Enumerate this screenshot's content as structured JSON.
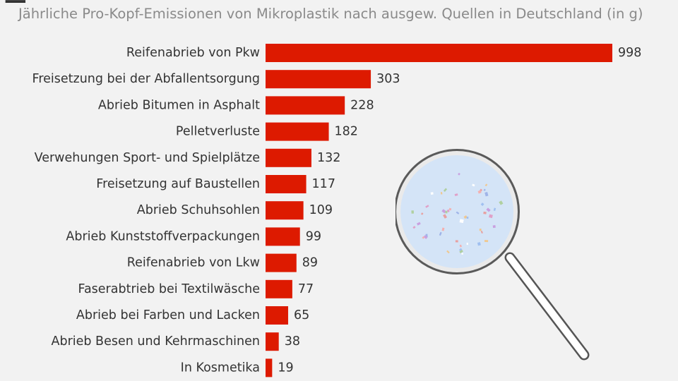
{
  "subtitle": "Jährliche Pro-Kopf-Emissionen von Mikroplastik nach ausgew. Quellen in Deutschland (in g)",
  "colors": {
    "bar": "#dd1a00",
    "background": "#f2f2f2",
    "lens": "#d4e4f7"
  },
  "illustration": {
    "icon": "magnifying-glass-icon"
  },
  "chart_data": {
    "type": "bar",
    "orientation": "horizontal",
    "title": "",
    "subtitle": "Jährliche Pro-Kopf-Emissionen von Mikroplastik nach ausgew. Quellen in Deutschland (in g)",
    "categories": [
      "Reifenabrieb von Pkw",
      "Freisetzung bei der Abfallentsorgung",
      "Abrieb Bitumen in Asphalt",
      "Pelletverluste",
      "Verwehungen Sport- und Spielplätze",
      "Freisetzung auf Baustellen",
      "Abrieb Schuhsohlen",
      "Abrieb Kunststoffverpackungen",
      "Reifenabrieb von Lkw",
      "Faserabtrieb bei Textilwäsche",
      "Abrieb bei Farben und Lacken",
      "Abrieb Besen und Kehrmaschinen",
      "In Kosmetika"
    ],
    "values": [
      998,
      303,
      228,
      182,
      132,
      117,
      109,
      99,
      89,
      77,
      65,
      38,
      19
    ],
    "xlim": [
      0,
      998
    ],
    "grid": false,
    "legend": "none"
  }
}
